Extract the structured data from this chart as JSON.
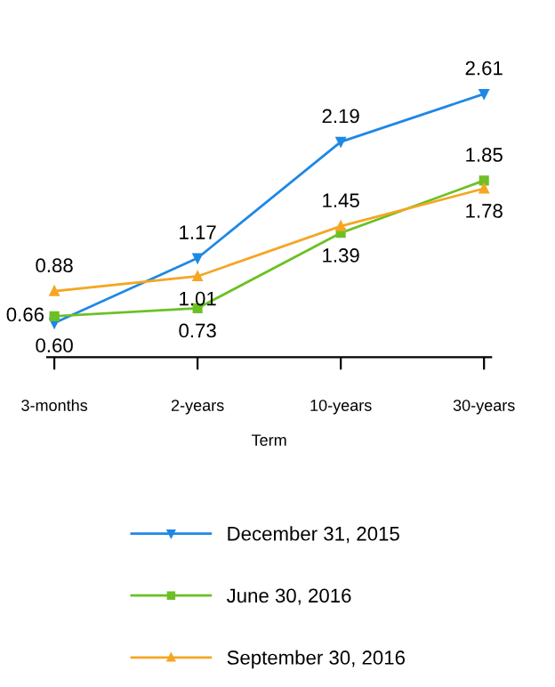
{
  "chart_data": {
    "type": "line",
    "xlabel": "Term",
    "categories": [
      "3-months",
      "2-years",
      "10-years",
      "30-years"
    ],
    "series": [
      {
        "name": "December 31, 2015",
        "color": "#1e88e5",
        "marker": "triangle_down",
        "values": [
          0.6,
          1.17,
          2.19,
          2.61
        ],
        "value_labels": [
          "0.60",
          "1.17",
          "2.19",
          "2.61"
        ]
      },
      {
        "name": "June 30, 2016",
        "color": "#6cc024",
        "marker": "square",
        "values": [
          0.66,
          0.73,
          1.39,
          1.85
        ],
        "value_labels": [
          "0.66",
          "0.73",
          "1.39",
          "1.85"
        ]
      },
      {
        "name": "September 30, 2016",
        "color": "#f5a623",
        "marker": "triangle",
        "values": [
          0.88,
          1.01,
          1.45,
          1.78
        ],
        "value_labels": [
          "0.88",
          "1.01",
          "1.45",
          "1.78"
        ]
      }
    ],
    "legend": "bottom",
    "grid": false,
    "line_style": "solid"
  }
}
